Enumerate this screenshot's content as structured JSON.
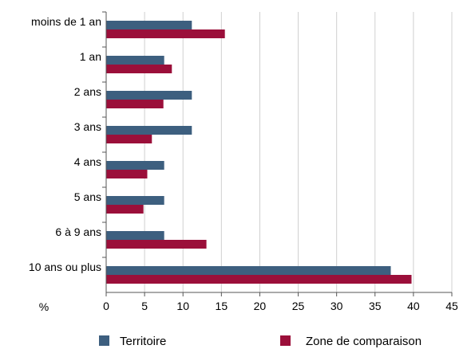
{
  "chart_data": {
    "type": "bar",
    "orientation": "horizontal",
    "categories": [
      "moins de 1 an",
      "1 an",
      "2 ans",
      "3 ans",
      "4 ans",
      "5 ans",
      "6 à 9 ans",
      "10 ans ou plus"
    ],
    "series": [
      {
        "name": "Territoire",
        "color": "#3d5f7f",
        "values": [
          11.1,
          7.5,
          11.1,
          11.1,
          7.5,
          7.5,
          7.5,
          37.0
        ]
      },
      {
        "name": "Zone de comparaison",
        "color": "#9b0f3a",
        "values": [
          15.4,
          8.5,
          7.4,
          5.9,
          5.3,
          4.8,
          13.0,
          39.7
        ]
      }
    ],
    "xlim": [
      0,
      45
    ],
    "xticks": [
      0,
      5,
      10,
      15,
      20,
      25,
      30,
      35,
      40,
      45
    ],
    "unit_label": "%",
    "grid": true,
    "legend_position": "bottom"
  }
}
